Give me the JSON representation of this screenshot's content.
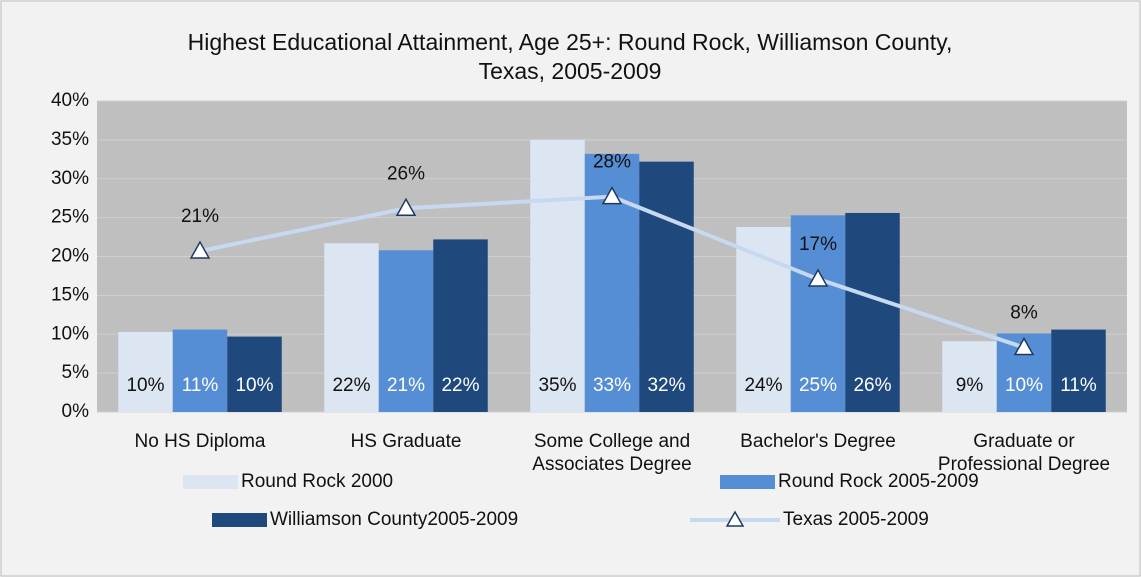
{
  "chart_data": {
    "type": "bar",
    "title": "Highest Educational Attainment, Age 25+: Round Rock, Williamson County, Texas, 2005-2009",
    "categories": [
      "No HS Diploma",
      "HS Graduate",
      "Some College and Associates Degree",
      "Bachelor's Degree",
      "Graduate or Professional Degree"
    ],
    "series": [
      {
        "name": "Round Rock 2000",
        "type": "bar",
        "color": "#dce6f2",
        "values": [
          10.3,
          21.7,
          35.0,
          23.8,
          9.1
        ],
        "value_labels": [
          "10%",
          "22%",
          "35%",
          "24%",
          "9%"
        ]
      },
      {
        "name": "Round Rock 2005-2009",
        "type": "bar",
        "color": "#558ed5",
        "values": [
          10.6,
          20.8,
          33.2,
          25.3,
          10.1
        ],
        "value_labels": [
          "11%",
          "21%",
          "33%",
          "25%",
          "10%"
        ]
      },
      {
        "name": "Williamson County2005-2009",
        "type": "bar",
        "color": "#1f497d",
        "values": [
          9.7,
          22.2,
          32.2,
          25.6,
          10.6
        ],
        "value_labels": [
          "10%",
          "22%",
          "32%",
          "26%",
          "11%"
        ]
      },
      {
        "name": "Texas 2005-2009",
        "type": "line",
        "color": "#c6d9f1",
        "values": [
          20.7,
          26.2,
          27.7,
          17.1,
          8.3
        ],
        "value_labels": [
          "21%",
          "26%",
          "28%",
          "17%",
          "8%"
        ]
      }
    ],
    "ylim": [
      0,
      40
    ],
    "yticks": [
      {
        "value": 0,
        "label": "0%"
      },
      {
        "value": 5,
        "label": "5%"
      },
      {
        "value": 10,
        "label": "10%"
      },
      {
        "value": 15,
        "label": "15%"
      },
      {
        "value": 20,
        "label": "20%"
      },
      {
        "value": 25,
        "label": "25%"
      },
      {
        "value": 30,
        "label": "30%"
      },
      {
        "value": 35,
        "label": "35%"
      },
      {
        "value": 40,
        "label": "40%"
      }
    ],
    "grid": true,
    "legend": "bottom"
  }
}
